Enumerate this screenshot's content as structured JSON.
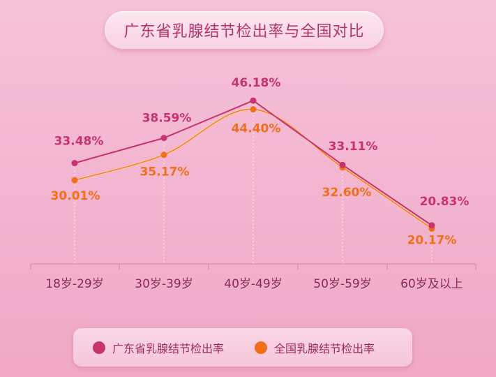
{
  "title": "广东省乳腺结节检出率与全国对比",
  "colors": {
    "series_guangdong": "#c8336e",
    "series_national": "#f26f1a",
    "axis": "#e58fb2",
    "tick_label": "#8a2a55"
  },
  "chart_data": {
    "type": "line",
    "title": "广东省乳腺结节检出率与全国对比",
    "categories": [
      "18岁-29岁",
      "30岁-39岁",
      "40岁-49岁",
      "50岁-59岁",
      "60岁及以上"
    ],
    "series": [
      {
        "name": "广东省乳腺结节检出率",
        "values": [
          33.48,
          38.59,
          46.18,
          33.11,
          20.83
        ],
        "labels": [
          "33.48%",
          "38.59%",
          "46.18%",
          "33.11%",
          "20.83%"
        ],
        "color": "#c8336e"
      },
      {
        "name": "全国乳腺结节检出率",
        "values": [
          30.01,
          35.17,
          44.4,
          32.6,
          20.17
        ],
        "labels": [
          "30.01%",
          "35.17%",
          "44.40%",
          "32.60%",
          "20.17%"
        ],
        "color": "#f26f1a"
      }
    ],
    "xlabel": "",
    "ylabel": "",
    "grid": false,
    "legend_position": "bottom"
  }
}
